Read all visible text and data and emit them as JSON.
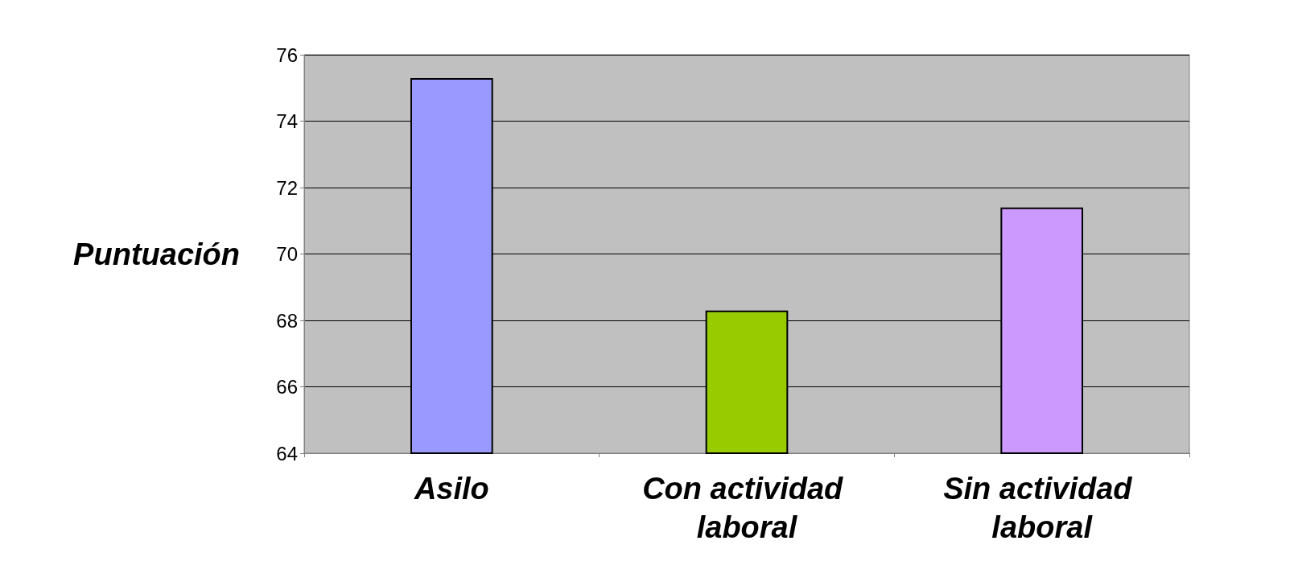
{
  "chart_data": {
    "type": "bar",
    "ylabel": "Puntuación",
    "categories": [
      "Asilo",
      "Con actividad laboral",
      "Sin actividad laboral"
    ],
    "values": [
      75.3,
      68.3,
      71.4
    ],
    "colors": [
      "#9999ff",
      "#99cc00",
      "#cc99ff"
    ],
    "ylim": [
      64,
      76
    ],
    "yticks": [
      64,
      66,
      68,
      70,
      72,
      74,
      76
    ],
    "grid": "y"
  }
}
